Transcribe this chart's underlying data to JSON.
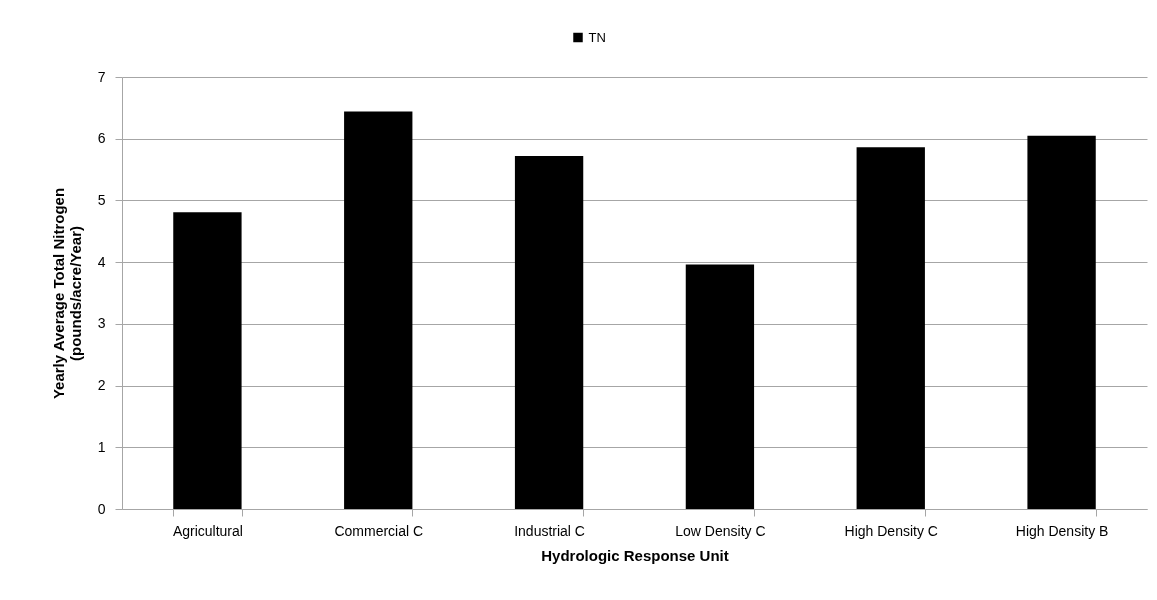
{
  "chart_data": {
    "type": "bar",
    "xlabel": "Hydrologic Response Unit",
    "ylabel": "Yearly Average Total Nitrogen\n(pounds/acre/Year)",
    "categories": [
      "Agricultural",
      "Commercial C",
      "Industrial C",
      "Low Density C",
      "High Density C",
      "High Density B"
    ],
    "series": [
      {
        "name": "TN",
        "color": "#000000",
        "values": [
          4.81,
          6.44,
          5.72,
          3.96,
          5.86,
          6.05
        ]
      }
    ],
    "ylim": [
      0,
      7
    ],
    "yticks": [
      0,
      1,
      2,
      3,
      4,
      5,
      6,
      7
    ],
    "grid": "y",
    "legend": "top"
  }
}
